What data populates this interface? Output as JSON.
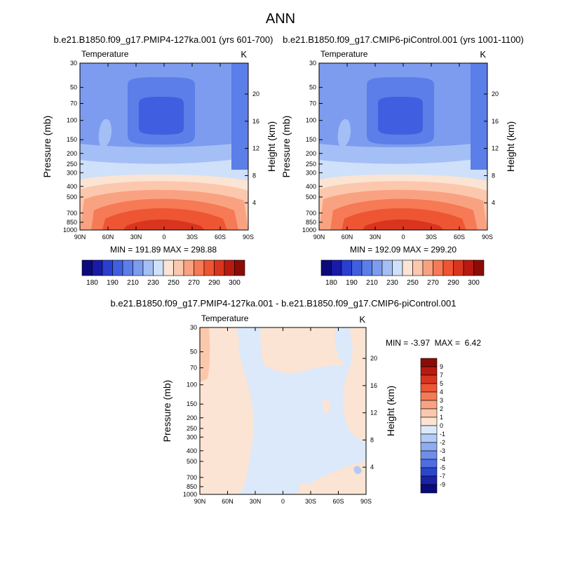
{
  "figure": {
    "suptitle": "ANN",
    "diff_title": "b.e21.B1850.f09_g17.PMIP4-127ka.001 - b.e21.B1850.f09_g17.CMIP6-piControl.001"
  },
  "chart_data": [
    {
      "type": "heatmap",
      "title": "b.e21.B1850.f09_g17.PMIP4-127ka.001 (yrs 601-700)",
      "left_label": "Temperature",
      "right_label": "K",
      "ylabel": "Pressure (mb)",
      "y2label": "Height (km)",
      "x_ticks": [
        "90N",
        "60N",
        "30N",
        "0",
        "30S",
        "60S",
        "90S"
      ],
      "y_ticks": [
        "30",
        "50",
        "70",
        "100",
        "150",
        "200",
        "250",
        "300",
        "400",
        "500",
        "700",
        "850",
        "1000"
      ],
      "y2_ticks": [
        "20",
        "16",
        "12",
        "8",
        "4"
      ],
      "ylim": [
        1000,
        30
      ],
      "stats": "MIN = 191.89  MAX = 298.88",
      "min": 191.89,
      "max": 298.88
    },
    {
      "type": "heatmap",
      "title": "b.e21.B1850.f09_g17.CMIP6-piControl.001 (yrs 1001-1100)",
      "left_label": "Temperature",
      "right_label": "K",
      "ylabel": "Pressure (mb)",
      "y2label": "Height (km)",
      "x_ticks": [
        "90N",
        "60N",
        "30N",
        "0",
        "30S",
        "60S",
        "90S"
      ],
      "y_ticks": [
        "30",
        "50",
        "70",
        "100",
        "150",
        "200",
        "250",
        "300",
        "400",
        "500",
        "700",
        "850",
        "1000"
      ],
      "y2_ticks": [
        "20",
        "16",
        "12",
        "8",
        "4"
      ],
      "ylim": [
        1000,
        30
      ],
      "stats": "MIN = 192.09  MAX = 299.20",
      "min": 192.09,
      "max": 299.2
    },
    {
      "type": "heatmap",
      "title": "",
      "left_label": "Temperature",
      "right_label": "K",
      "ylabel": "Pressure (mb)",
      "y2label": "Height (km)",
      "x_ticks": [
        "90N",
        "60N",
        "30N",
        "0",
        "30S",
        "60S",
        "90S"
      ],
      "y_ticks": [
        "30",
        "50",
        "70",
        "100",
        "150",
        "200",
        "250",
        "300",
        "400",
        "500",
        "700",
        "850",
        "1000"
      ],
      "y2_ticks": [
        "20",
        "16",
        "12",
        "8",
        "4"
      ],
      "ylim": [
        1000,
        30
      ],
      "stats": "MIN = -3.97  MAX =  6.42",
      "min": -3.97,
      "max": 6.42
    }
  ],
  "colorbars": {
    "absolute": {
      "labels": [
        "180",
        "190",
        "210",
        "230",
        "250",
        "270",
        "290",
        "300"
      ],
      "colors": [
        "#0a0a7a",
        "#1a1aa8",
        "#2a3fd0",
        "#3f5fe0",
        "#5b7ee8",
        "#7d9cef",
        "#a4bff5",
        "#cfe0fa",
        "#fbe4d3",
        "#fcc8ad",
        "#f9a281",
        "#f57a55",
        "#ee5533",
        "#d9351e",
        "#b81a10",
        "#8b0c05"
      ]
    },
    "difference": {
      "labels": [
        "9",
        "7",
        "5",
        "4",
        "3",
        "2",
        "1",
        "0",
        "-1",
        "-2",
        "-3",
        "-4",
        "-5",
        "-7",
        "-9"
      ],
      "colors": [
        "#8b0c05",
        "#b81a10",
        "#d9351e",
        "#ee5533",
        "#f57a55",
        "#f9a281",
        "#fcc8ad",
        "#fbe4d3",
        "#dbe9fb",
        "#b2cbf6",
        "#8eacf1",
        "#6e8eea",
        "#4d6ee2",
        "#2a46cc",
        "#1a22a8",
        "#0a0a7a"
      ]
    }
  }
}
